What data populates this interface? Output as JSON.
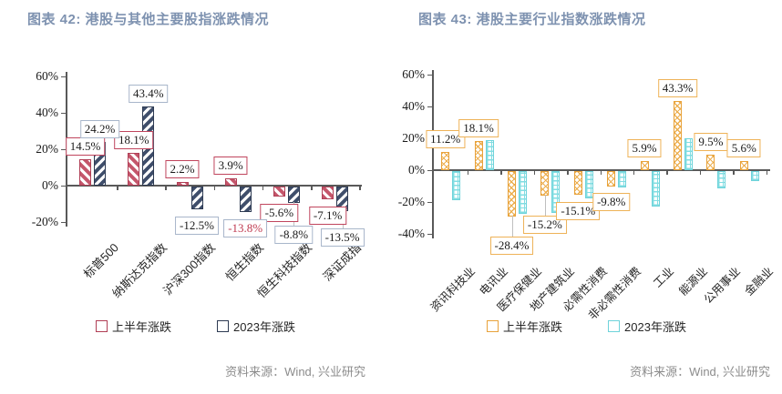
{
  "chart_data": [
    {
      "type": "bar",
      "title": "图表 42: 港股与其他主要股指涨跌情况",
      "source": "资料来源：Wind, 兴业研究",
      "categories": [
        "标普500",
        "纳斯达克指数",
        "沪深300指数",
        "恒生指数",
        "恒生科技指数",
        "深证成指"
      ],
      "series": [
        {
          "name": "上半年涨跌",
          "values": [
            14.5,
            18.1,
            2.2,
            3.9,
            -5.6,
            -7.1
          ],
          "data_labels": [
            "14.5%",
            "18.1%",
            "2.2%",
            "3.9%",
            "-5.6%",
            "-7.1%"
          ],
          "pattern": "diag-down",
          "color": "#c4566b",
          "border": "#b03e55",
          "label_box_border": "#c0455d"
        },
        {
          "name": "2023年涨跌",
          "values": [
            24.2,
            43.4,
            -12.5,
            -13.8,
            -8.8,
            -13.5
          ],
          "data_labels": [
            "24.2%",
            "43.4%",
            "-12.5%",
            "-13.8%",
            "-8.8%",
            "-13.5%"
          ],
          "pattern": "diag-up",
          "color": "#3f4e6b",
          "border": "#2d3a52",
          "label_box_border": "#a8b6ca",
          "label_text_overrides": {
            "3": "#c03a50"
          }
        }
      ],
      "ylim": [
        -20,
        60
      ],
      "ytick_values": [
        60,
        40,
        20,
        0,
        -20
      ],
      "ytick_labels": [
        "60%",
        "40%",
        "20%",
        "0%",
        "-20%"
      ],
      "grid": false,
      "legend_position": "bottom"
    },
    {
      "type": "bar",
      "title": "图表 43: 港股主要行业指数涨跌情况",
      "source": "资料来源：Wind, 兴业研究",
      "categories": [
        "资讯科技业",
        "电讯业",
        "医疗保健业",
        "地产建筑业",
        "必需性消费",
        "非必需性消费",
        "工业",
        "能源业",
        "公用事业",
        "金融业"
      ],
      "series": [
        {
          "name": "上半年涨跌",
          "values": [
            11.2,
            18.1,
            -28.4,
            -15.2,
            -15.1,
            -9.8,
            5.9,
            43.3,
            9.5,
            5.6
          ],
          "data_labels": [
            "11.2%",
            "18.1%",
            "-28.4%",
            "-15.2%",
            "-15.1%",
            "-9.8%",
            "5.9%",
            "43.3%",
            "9.5%",
            "5.6%"
          ],
          "pattern": "cross",
          "color": "#ecae4e",
          "border": "#e8a23a",
          "label_box_border": "#eeb257"
        },
        {
          "name": "2023年涨跌",
          "values": [
            -18,
            19,
            -27,
            -26,
            -17,
            -10,
            -22,
            20,
            -11,
            -6
          ],
          "data_labels": null,
          "labels_shown": false,
          "pattern": "grid",
          "color": "#82dde2",
          "border": "#6ed3da"
        }
      ],
      "ylim": [
        -40,
        60
      ],
      "ytick_values": [
        60,
        40,
        20,
        0,
        -20,
        -40
      ],
      "ytick_labels": [
        "60%",
        "40%",
        "20%",
        "0%",
        "-20%",
        "-40%"
      ],
      "grid": false,
      "legend_position": "bottom"
    }
  ]
}
